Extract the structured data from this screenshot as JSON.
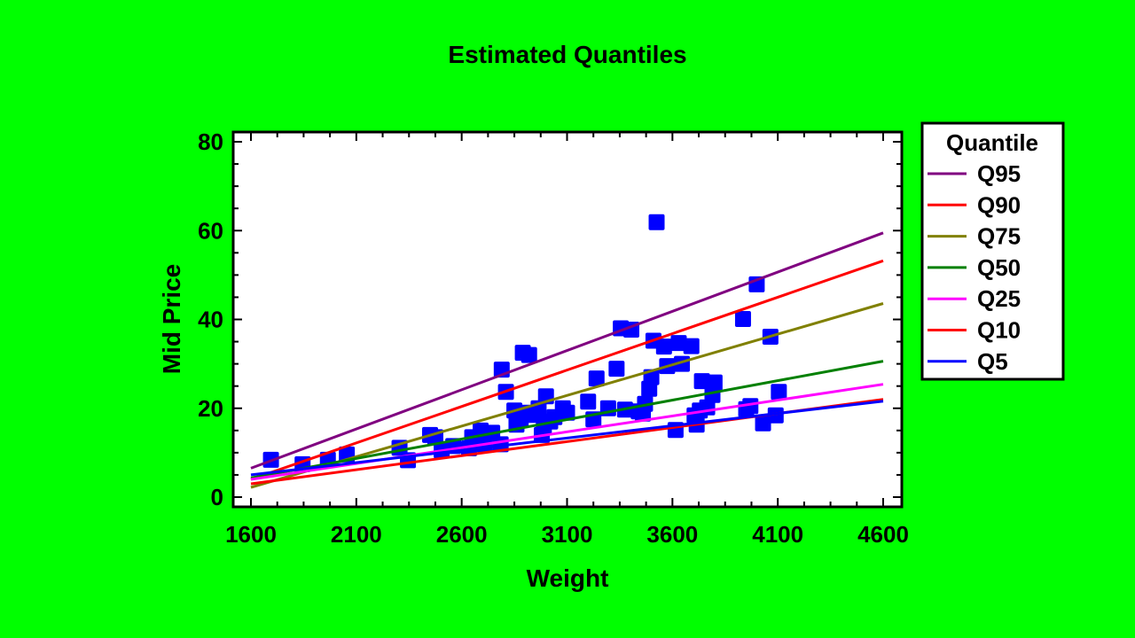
{
  "chart_data": {
    "type": "scatter",
    "title": "Estimated Quantiles",
    "xlabel": "Weight",
    "ylabel": "Mid Price",
    "xlim": [
      1600,
      4600
    ],
    "ylim": [
      0,
      80
    ],
    "x_ticks": [
      1600,
      2100,
      2600,
      3100,
      3600,
      4100,
      4600
    ],
    "y_ticks": [
      0,
      20,
      40,
      60,
      80
    ],
    "grid": false,
    "legend": {
      "title": "Quantile",
      "position": "right"
    },
    "points": {
      "color": "#0000ff",
      "x": [
        1695,
        1845,
        1965,
        2055,
        2305,
        2345,
        2450,
        2475,
        2505,
        2560,
        2635,
        2650,
        2690,
        2710,
        2745,
        2785,
        2790,
        2810,
        2850,
        2860,
        2880,
        2890,
        2900,
        2920,
        2950,
        2965,
        2980,
        2990,
        3000,
        3020,
        3040,
        3080,
        3100,
        3200,
        3225,
        3240,
        3295,
        3335,
        3355,
        3375,
        3405,
        3440,
        3460,
        3470,
        3490,
        3500,
        3510,
        3525,
        3560,
        3575,
        3615,
        3630,
        3645,
        3690,
        3705,
        3715,
        3730,
        3740,
        3765,
        3790,
        3800,
        3935,
        3950,
        3970,
        4000,
        4030,
        4065,
        4090,
        4105
      ],
      "y": [
        8.4,
        7.4,
        8.4,
        9.6,
        11.1,
        8.3,
        14.0,
        13.5,
        10.5,
        11.5,
        11.0,
        13.5,
        15.0,
        11.8,
        14.5,
        11.9,
        28.7,
        23.7,
        19.5,
        16.3,
        17.7,
        32.5,
        19.0,
        32.0,
        18.5,
        20.0,
        14.0,
        16.0,
        22.7,
        17.0,
        18.0,
        20.0,
        19.0,
        21.5,
        17.5,
        26.7,
        20.0,
        28.9,
        38.0,
        19.7,
        37.7,
        19.3,
        18.8,
        21.0,
        24.4,
        27.0,
        35.2,
        61.9,
        33.9,
        29.5,
        15.1,
        34.7,
        30.0,
        34.0,
        18.4,
        16.3,
        19.5,
        26.1,
        20.2,
        23.0,
        25.8,
        40.1,
        19.8,
        20.5,
        47.9,
        16.6,
        36.1,
        18.4,
        23.7
      ]
    },
    "series": [
      {
        "name": "Q95",
        "color": "#800080",
        "x": [
          1600,
          4600
        ],
        "y": [
          6.5,
          59.5
        ]
      },
      {
        "name": "Q90",
        "color": "#ff0000",
        "x": [
          1600,
          4600
        ],
        "y": [
          4.0,
          53.2
        ]
      },
      {
        "name": "Q75",
        "color": "#808000",
        "x": [
          1600,
          4600
        ],
        "y": [
          2.2,
          43.6
        ]
      },
      {
        "name": "Q50",
        "color": "#008000",
        "x": [
          1600,
          4600
        ],
        "y": [
          4.3,
          30.6
        ]
      },
      {
        "name": "Q25",
        "color": "#ff00ff",
        "x": [
          1600,
          4600
        ],
        "y": [
          4.0,
          25.4
        ]
      },
      {
        "name": "Q10",
        "color": "#ff0000",
        "x": [
          1600,
          4600
        ],
        "y": [
          3.0,
          22.0
        ]
      },
      {
        "name": "Q5",
        "color": "#0000ff",
        "x": [
          1600,
          4600
        ],
        "y": [
          5.0,
          21.6
        ]
      }
    ]
  }
}
